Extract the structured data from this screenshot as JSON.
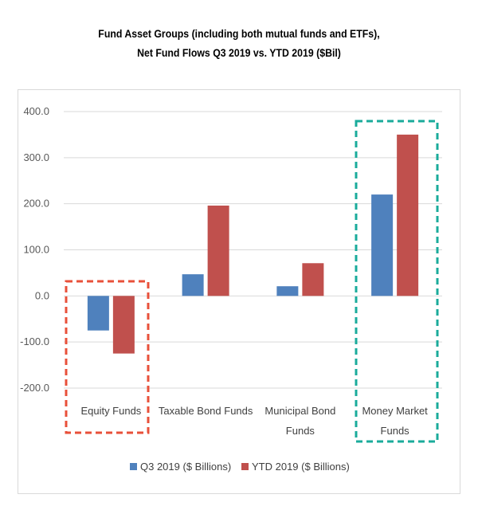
{
  "title_line1": "Fund Asset Groups (including both mutual funds and ETFs),",
  "title_line2": "Net Fund Flows Q3 2019 vs. YTD 2019 ($Bil)",
  "chart_data": {
    "type": "bar",
    "categories": [
      [
        "Equity Funds"
      ],
      [
        "Taxable Bond Funds"
      ],
      [
        "Municipal Bond",
        "Funds"
      ],
      [
        "Money Market",
        "Funds"
      ]
    ],
    "series": [
      {
        "name": "Q3 2019 ($ Billions)",
        "color": "#4f81bd",
        "values": [
          -75,
          47,
          21,
          220
        ]
      },
      {
        "name": "YTD 2019 ($ Billions)",
        "color": "#c0504d",
        "values": [
          -125,
          196,
          71,
          350
        ]
      }
    ],
    "ylim": [
      -200,
      400
    ],
    "yticks": [
      "400.0",
      "300.0",
      "200.0",
      "100.0",
      "0.0",
      "-100.0",
      "-200.0"
    ],
    "ytick_values": [
      400,
      300,
      200,
      100,
      0,
      -100,
      -200
    ],
    "grid": true,
    "legend": "bottom",
    "highlights": [
      {
        "category_index": 0,
        "color": "#e8503a",
        "style": "dashed"
      },
      {
        "category_index": 3,
        "color": "#1aab9b",
        "style": "dashed"
      }
    ]
  }
}
